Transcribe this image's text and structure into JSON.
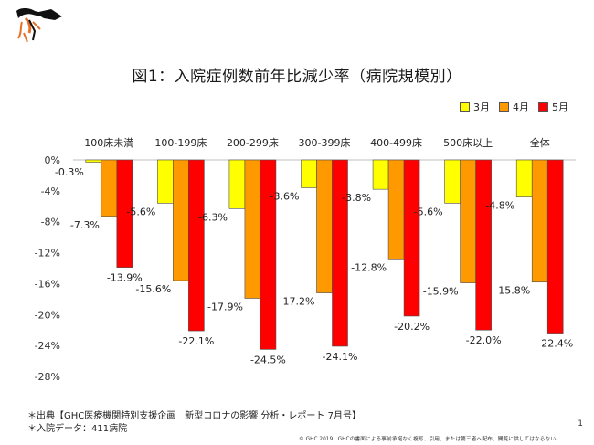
{
  "title": "図1：入院症例数前年比減少率（病院規模別）",
  "legend": [
    {
      "label": "3月",
      "color": "#ffff00"
    },
    {
      "label": "4月",
      "color": "#ff9900"
    },
    {
      "label": "5月",
      "color": "#ff0000"
    }
  ],
  "notes": {
    "line1": "＊出典【GHC医療機関特別支援企画　新型コロナの影響 分析・レポート 7月号】",
    "line2": "＊入院データ：411病院"
  },
  "page_number": "1",
  "copyright": "© GHC 2019 . GHCの書面による事前承諾なく複写、引用、または第三者へ配布、開覧に供してはならない。",
  "chart_data": {
    "type": "bar",
    "title": "図1：入院症例数前年比減少率（病院規模別）",
    "categories": [
      "100床未満",
      "100-199床",
      "200-299床",
      "300-399床",
      "400-499床",
      "500床以上",
      "全体"
    ],
    "series": [
      {
        "name": "3月",
        "color": "#ffff00",
        "values": [
          -0.3,
          -5.6,
          -6.3,
          -3.6,
          -3.8,
          -5.6,
          -4.8
        ],
        "labels": [
          "-0.3%",
          "-5.6%",
          "-6.3%",
          "-3.6%",
          "-3.8%",
          "-5.6%",
          "-4.8%"
        ]
      },
      {
        "name": "4月",
        "color": "#ff9900",
        "values": [
          -7.3,
          -15.6,
          -17.9,
          -17.2,
          -12.8,
          -15.9,
          -15.8
        ],
        "labels": [
          "-7.3%",
          "-15.6%",
          "-17.9%",
          "-17.2%",
          "-12.8%",
          "-15.9%",
          "-15.8%"
        ]
      },
      {
        "name": "5月",
        "color": "#ff0000",
        "values": [
          -13.9,
          -22.1,
          -24.5,
          -24.1,
          -20.2,
          -22.0,
          -22.4
        ],
        "labels": [
          "-13.9%",
          "-22.1%",
          "-24.5%",
          "-24.1%",
          "-20.2%",
          "-22.0%",
          "-22.4%"
        ]
      }
    ],
    "y_ticks": [
      0,
      -4,
      -8,
      -12,
      -16,
      -20,
      -24,
      -28
    ],
    "y_tick_labels": [
      "0%",
      "-4%",
      "-8%",
      "-12%",
      "-16%",
      "-20%",
      "-24%",
      "-28%"
    ],
    "ylim": [
      -28,
      0
    ],
    "legend_position": "top-right",
    "grid": false,
    "xlabel": "",
    "ylabel": ""
  }
}
